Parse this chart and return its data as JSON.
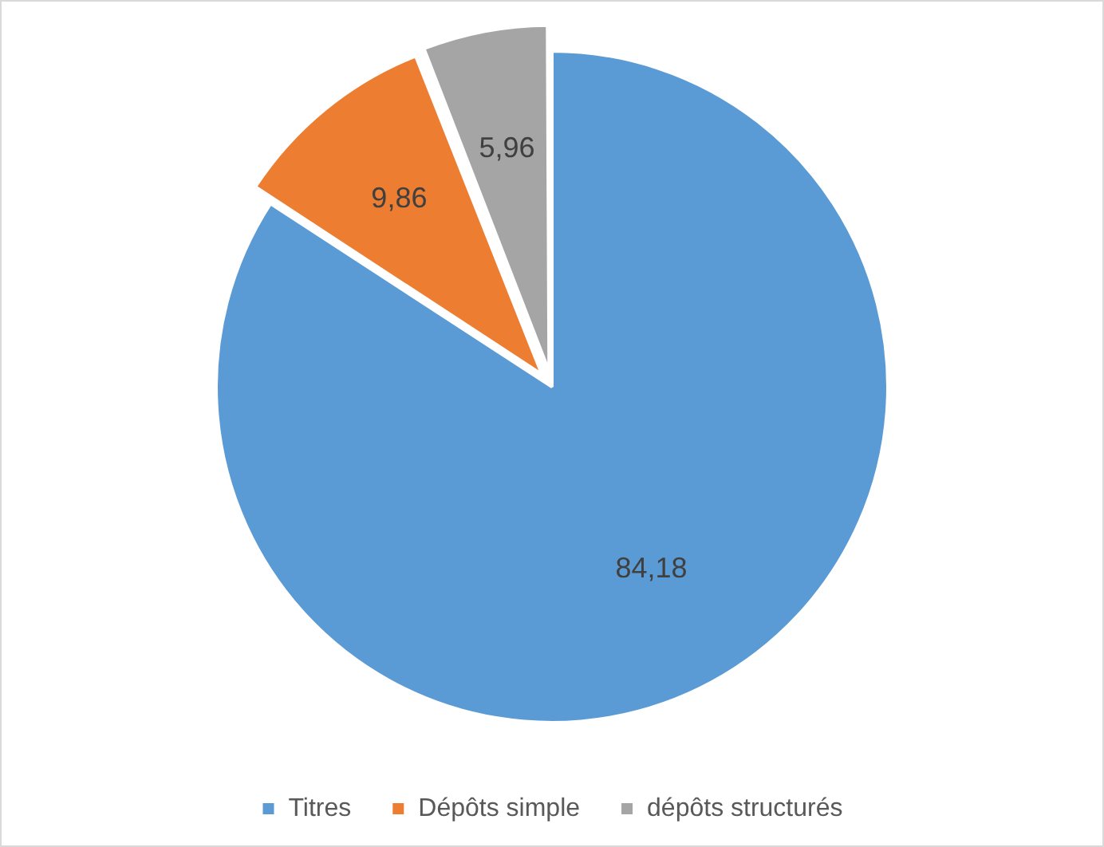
{
  "chart_data": {
    "type": "pie",
    "categories": [
      "Titres",
      "Dépôts simple",
      "dépôts structurés"
    ],
    "values": [
      84.18,
      9.86,
      5.96
    ],
    "colors": [
      "#5b9bd5",
      "#ed7d31",
      "#a5a5a5"
    ],
    "value_labels": [
      "84,18",
      "9,86",
      "5,96"
    ],
    "legend": "bottom"
  }
}
